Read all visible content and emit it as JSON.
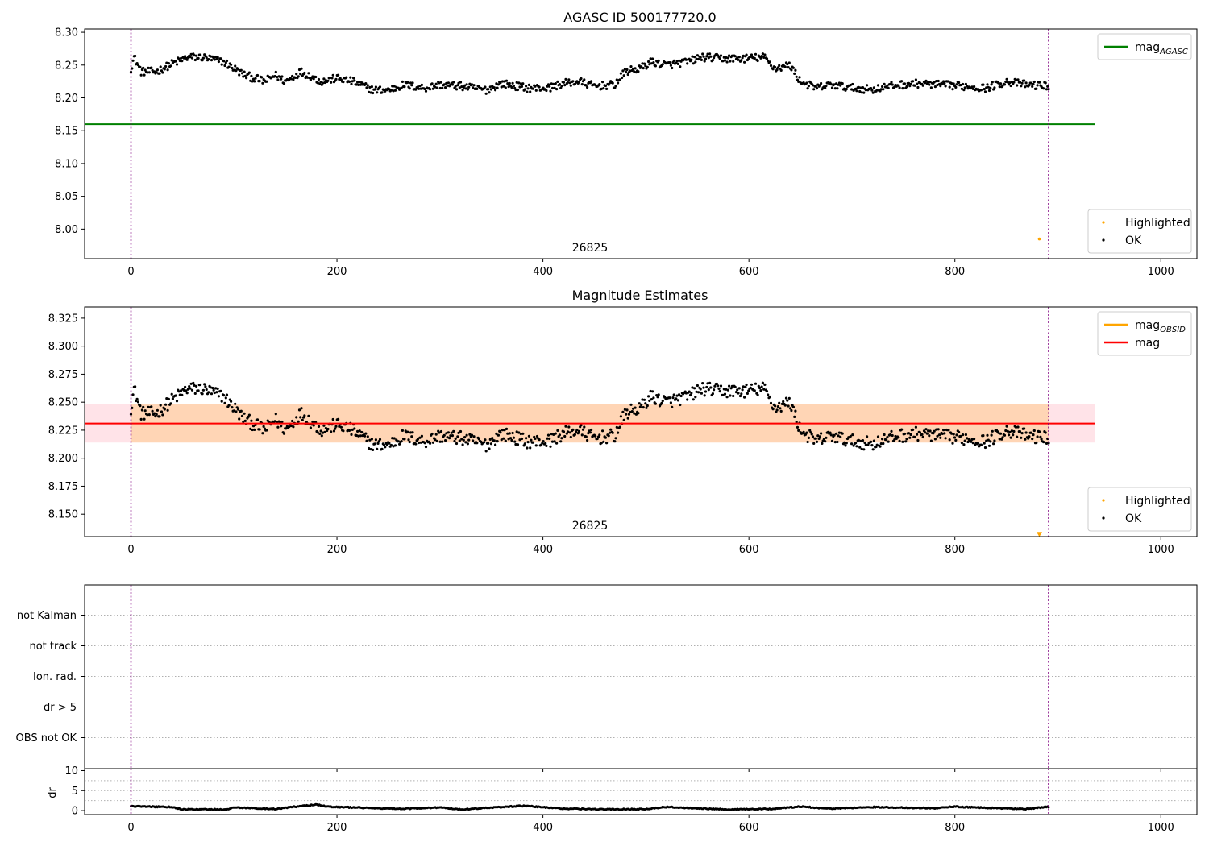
{
  "chart_data": [
    {
      "type": "scatter",
      "panel": "agasc",
      "title": "AGASC ID 500177720.0",
      "xlim": [
        -45,
        1035
      ],
      "ylim": [
        7.955,
        8.305
      ],
      "xticks": [
        0,
        200,
        400,
        600,
        800,
        1000
      ],
      "yticks": [
        8.0,
        8.05,
        8.1,
        8.15,
        8.2,
        8.25,
        8.3
      ],
      "ytick_labels": [
        "8.00",
        "8.05",
        "8.10",
        "8.15",
        "8.20",
        "8.25",
        "8.30"
      ],
      "obsid_label": {
        "text": "26825",
        "x": 445
      },
      "obs_boundaries": [
        0,
        891
      ],
      "hline": {
        "name": "mag",
        "subscript": "AGASC",
        "value": 8.16,
        "xmin": -45,
        "xmax": 936,
        "color": "#008000"
      },
      "highlighted_points": [
        {
          "x": 882,
          "y": 7.985
        }
      ],
      "profile": [
        [
          0,
          8.245
        ],
        [
          3,
          8.262
        ],
        [
          10,
          8.24
        ],
        [
          25,
          8.24
        ],
        [
          40,
          8.252
        ],
        [
          55,
          8.262
        ],
        [
          70,
          8.262
        ],
        [
          90,
          8.255
        ],
        [
          100,
          8.245
        ],
        [
          110,
          8.235
        ],
        [
          130,
          8.225
        ],
        [
          140,
          8.235
        ],
        [
          150,
          8.225
        ],
        [
          165,
          8.24
        ],
        [
          185,
          8.225
        ],
        [
          200,
          8.23
        ],
        [
          215,
          8.225
        ],
        [
          235,
          8.212
        ],
        [
          250,
          8.212
        ],
        [
          265,
          8.22
        ],
        [
          285,
          8.215
        ],
        [
          300,
          8.22
        ],
        [
          320,
          8.218
        ],
        [
          345,
          8.212
        ],
        [
          360,
          8.222
        ],
        [
          385,
          8.215
        ],
        [
          405,
          8.215
        ],
        [
          420,
          8.222
        ],
        [
          435,
          8.225
        ],
        [
          450,
          8.218
        ],
        [
          470,
          8.22
        ],
        [
          480,
          8.24
        ],
        [
          495,
          8.245
        ],
        [
          505,
          8.255
        ],
        [
          520,
          8.25
        ],
        [
          540,
          8.255
        ],
        [
          555,
          8.262
        ],
        [
          575,
          8.26
        ],
        [
          595,
          8.26
        ],
        [
          615,
          8.262
        ],
        [
          625,
          8.245
        ],
        [
          640,
          8.25
        ],
        [
          650,
          8.225
        ],
        [
          665,
          8.215
        ],
        [
          680,
          8.22
        ],
        [
          700,
          8.215
        ],
        [
          720,
          8.213
        ],
        [
          745,
          8.22
        ],
        [
          765,
          8.222
        ],
        [
          785,
          8.22
        ],
        [
          810,
          8.218
        ],
        [
          830,
          8.215
        ],
        [
          850,
          8.225
        ],
        [
          870,
          8.22
        ],
        [
          891,
          8.218
        ]
      ],
      "legend_upper": {
        "position": "upper right",
        "entries": [
          {
            "label": "mag",
            "subscript": "AGASC",
            "color": "#008000",
            "kind": "line"
          }
        ]
      },
      "legend_lower": {
        "position": "lower right",
        "entries": [
          {
            "label": "Highlighted",
            "color": "#ffa500",
            "kind": "point"
          },
          {
            "label": "OK",
            "color": "#000000",
            "kind": "point"
          }
        ]
      }
    },
    {
      "type": "scatter",
      "panel": "estimates",
      "title": "Magnitude Estimates",
      "xlim": [
        -45,
        1035
      ],
      "ylim": [
        8.13,
        8.335
      ],
      "xticks": [
        0,
        200,
        400,
        600,
        800,
        1000
      ],
      "yticks": [
        8.15,
        8.175,
        8.2,
        8.225,
        8.25,
        8.275,
        8.3,
        8.325
      ],
      "ytick_labels": [
        "8.150",
        "8.175",
        "8.200",
        "8.225",
        "8.250",
        "8.275",
        "8.300",
        "8.325"
      ],
      "obsid_label": {
        "text": "26825",
        "x": 445
      },
      "obs_boundaries": [
        0,
        891
      ],
      "mag_line": {
        "name": "mag",
        "value": 8.231,
        "xmin": -45,
        "xmax": 936,
        "color": "#ff0000"
      },
      "mag_band": {
        "low": 8.214,
        "high": 8.248,
        "xmin": -45,
        "xmax": 936,
        "color": "#ffc0cb"
      },
      "mag_obsid_band": {
        "name": "mag",
        "subscript": "OBSID",
        "low": 8.214,
        "high": 8.248,
        "xmin": 0,
        "xmax": 891,
        "color": "#ffa500"
      },
      "highlighted_marker": {
        "x": 882,
        "y": 8.132
      },
      "legend_upper": {
        "position": "upper right",
        "entries": [
          {
            "label": "mag",
            "subscript": "OBSID",
            "color": "#ffa500",
            "kind": "line"
          },
          {
            "label": "mag",
            "subscript": "",
            "color": "#ff0000",
            "kind": "line"
          }
        ]
      },
      "legend_lower": {
        "position": "lower right",
        "entries": [
          {
            "label": "Highlighted",
            "color": "#ffa500",
            "kind": "point"
          },
          {
            "label": "OK",
            "color": "#000000",
            "kind": "point"
          }
        ]
      }
    },
    {
      "type": "scatter",
      "panel": "flags",
      "xlim": [
        -45,
        1035
      ],
      "categories": [
        "not Kalman",
        "not track",
        "Ion. rad.",
        "dr > 5",
        "OBS not OK"
      ],
      "obs_boundaries": [
        0,
        891
      ]
    },
    {
      "type": "scatter",
      "panel": "dr",
      "ylabel": "dr",
      "xlim": [
        -45,
        1035
      ],
      "ylim": [
        -1,
        10.5
      ],
      "xticks": [
        0,
        200,
        400,
        600,
        800,
        1000
      ],
      "yticks": [
        0,
        5,
        10
      ],
      "ytick_labels": [
        "0",
        "5",
        "10"
      ],
      "obs_boundaries": [
        0,
        891
      ],
      "profile": [
        [
          0,
          1.1
        ],
        [
          40,
          0.9
        ],
        [
          50,
          0.3
        ],
        [
          95,
          0.3
        ],
        [
          100,
          0.8
        ],
        [
          140,
          0.4
        ],
        [
          160,
          1.0
        ],
        [
          180,
          1.5
        ],
        [
          190,
          1.0
        ],
        [
          240,
          0.6
        ],
        [
          260,
          0.4
        ],
        [
          300,
          0.8
        ],
        [
          320,
          0.3
        ],
        [
          380,
          1.2
        ],
        [
          420,
          0.5
        ],
        [
          460,
          0.3
        ],
        [
          500,
          0.4
        ],
        [
          520,
          0.9
        ],
        [
          580,
          0.3
        ],
        [
          620,
          0.4
        ],
        [
          650,
          1.0
        ],
        [
          680,
          0.5
        ],
        [
          720,
          0.9
        ],
        [
          780,
          0.6
        ],
        [
          800,
          1.0
        ],
        [
          830,
          0.7
        ],
        [
          870,
          0.4
        ],
        [
          891,
          1.0
        ]
      ]
    }
  ]
}
